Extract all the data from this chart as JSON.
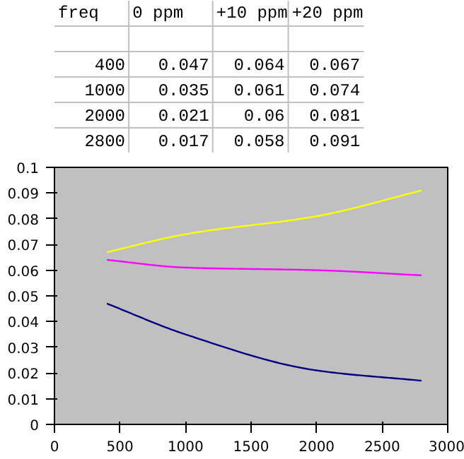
{
  "chart_data": [
    {
      "type": "other",
      "annotations": [
        "freq",
        "0 ppm",
        "+10 ppm",
        "+20 ppm",
        "400",
        "0.047",
        "0.064",
        "0.067",
        "1000",
        "0.035",
        "0.061",
        "0.074",
        "2000",
        "0.021",
        "0.06",
        "0.081",
        "2800",
        "0.017",
        "0.058",
        "0.091"
      ]
    },
    {
      "type": "line",
      "x": [
        400,
        1000,
        2000,
        2800
      ],
      "series": [
        {
          "color": "#000080",
          "values": [
            0.047,
            0.035,
            0.021,
            0.017
          ]
        },
        {
          "color": "#ff00ff",
          "values": [
            0.064,
            0.061,
            0.06,
            0.058
          ]
        },
        {
          "color": "#ffff00",
          "values": [
            0.067,
            0.074,
            0.081,
            0.091
          ]
        }
      ],
      "xlim": [
        0,
        3000
      ],
      "xticks": [
        0,
        500,
        1000,
        1500,
        2000,
        2500,
        3000
      ],
      "ylim": [
        0,
        0.1
      ],
      "yticks": [
        0,
        0.01,
        0.02,
        0.03,
        0.04,
        0.05,
        0.06,
        0.07,
        0.08,
        0.09,
        0.1
      ]
    }
  ]
}
